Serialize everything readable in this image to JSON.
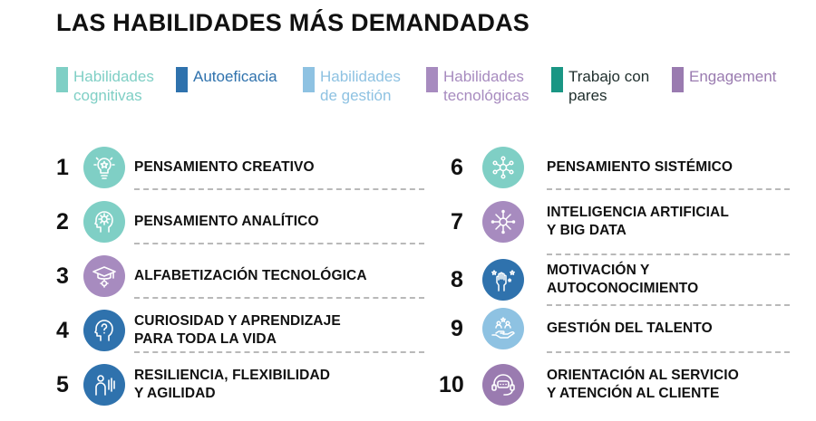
{
  "title": "LAS HABILIDADES MÁS DEMANDADAS",
  "colors": {
    "cognitivas": "#7fcfc5",
    "autoeficacia": "#2f72ad",
    "gestion": "#8ec2e2",
    "tecnologicas": "#a78bbf",
    "pares": "#1a9684",
    "engagement": "#9a7bb0"
  },
  "legend": [
    {
      "label": "Habilidades\ncognitivas",
      "color": "#7fcfc5"
    },
    {
      "label": "Autoeficacia",
      "color": "#2f72ad"
    },
    {
      "label": "Habilidades\nde gestión",
      "color": "#8ec2e2"
    },
    {
      "label": "Habilidades\ntecnológicas",
      "color": "#a78bbf"
    },
    {
      "label": "Trabajo con\npares",
      "color": "#1a9684"
    },
    {
      "label": "Engagement",
      "color": "#9a7bb0"
    }
  ],
  "skills": [
    {
      "number": "1",
      "label": "PENSAMIENTO CREATIVO",
      "icon": "lightbulb-star-icon",
      "color": "#7fcfc5"
    },
    {
      "number": "2",
      "label": "PENSAMIENTO ANALÍTICO",
      "icon": "head-gear-icon",
      "color": "#7fcfc5"
    },
    {
      "number": "3",
      "label": "ALFABETIZACIÓN TECNOLÓGICA",
      "icon": "graduation-cap-gear-icon",
      "color": "#a78bbf"
    },
    {
      "number": "4",
      "label": "CURIOSIDAD Y APRENDIZAJE\nPARA TODA LA VIDA",
      "icon": "head-question-icon",
      "color": "#2f72ad"
    },
    {
      "number": "5",
      "label": "RESILIENCIA, FLEXIBILIDAD\nY AGILIDAD",
      "icon": "person-signal-icon",
      "color": "#2f72ad"
    },
    {
      "number": "6",
      "label": "PENSAMIENTO SISTÉMICO",
      "icon": "network-nodes-icon",
      "color": "#7fcfc5"
    },
    {
      "number": "7",
      "label": "INTELIGENCIA ARTIFICIAL\n Y BIG DATA",
      "icon": "chip-circuit-icon",
      "color": "#a78bbf"
    },
    {
      "number": "8",
      "label": "MOTIVACIÓN Y\nAUTOCONOCIMIENTO",
      "icon": "raised-fist-stars-icon",
      "color": "#2f72ad"
    },
    {
      "number": "9",
      "label": "GESTIÓN DEL TALENTO",
      "icon": "hand-people-star-icon",
      "color": "#8ec2e2"
    },
    {
      "number": "10",
      "label": "ORIENTACIÓN AL SERVICIO\nY ATENCIÓN AL CLIENTE",
      "icon": "headset-chat-icon",
      "color": "#9a7bb0"
    }
  ]
}
